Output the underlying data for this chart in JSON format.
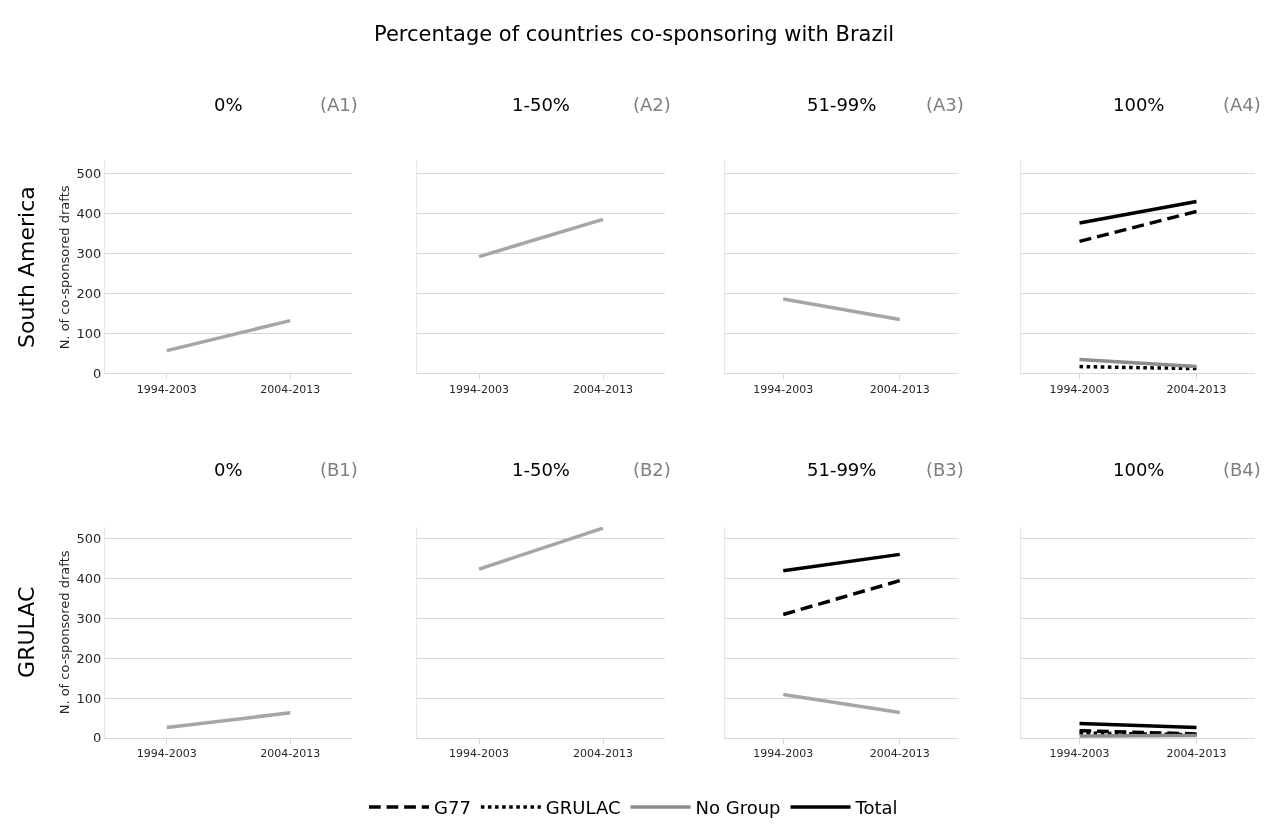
{
  "chart_data": [
    {
      "type": "line",
      "title": "0%",
      "ylabel": "N. of co-sponsored drafts",
      "annotations": [
        "(A1)",
        "South America",
        "Percentage of countries co-sponsoring with Brazil"
      ],
      "categories": [
        "1994-2003",
        "2004-2013"
      ],
      "ylim": [
        0,
        530
      ],
      "yticks": [
        0,
        100,
        200,
        300,
        400,
        500
      ],
      "grid": "y",
      "series": [
        {
          "color": "#a6a6a6",
          "values": [
            57,
            132
          ],
          "line_style": "solid"
        }
      ]
    },
    {
      "type": "line",
      "title": "1-50%",
      "annotations": [
        "(A2)"
      ],
      "categories": [
        "1994-2003",
        "2004-2013"
      ],
      "ylim": [
        0,
        530
      ],
      "yticks": [
        0,
        100,
        200,
        300,
        400,
        500
      ],
      "grid": "y",
      "tick_labels": "x",
      "series": [
        {
          "color": "#a6a6a6",
          "values": [
            292,
            385
          ],
          "line_style": "solid"
        }
      ]
    },
    {
      "type": "line",
      "title": "51-99%",
      "annotations": [
        "(A3)"
      ],
      "categories": [
        "1994-2003",
        "2004-2013"
      ],
      "ylim": [
        0,
        530
      ],
      "yticks": [
        0,
        100,
        200,
        300,
        400,
        500
      ],
      "grid": "y",
      "tick_labels": "x",
      "series": [
        {
          "color": "#a6a6a6",
          "values": [
            186,
            135
          ],
          "line_style": "solid"
        }
      ]
    },
    {
      "type": "line",
      "title": "100%",
      "annotations": [
        "(A4)"
      ],
      "categories": [
        "1994-2003",
        "2004-2013"
      ],
      "ylim": [
        0,
        530
      ],
      "yticks": [
        0,
        100,
        200,
        300,
        400,
        500
      ],
      "grid": "y",
      "tick_labels": "x",
      "series": [
        {
          "color": "#000000",
          "values": [
            330,
            405
          ],
          "line_style": "dashed"
        },
        {
          "color": "#000000",
          "values": [
            17,
            12
          ],
          "line_style": "dotted"
        },
        {
          "color": "#8c8c8c",
          "values": [
            35,
            17
          ],
          "line_style": "solid"
        },
        {
          "color": "#000000",
          "values": [
            376,
            430
          ],
          "line_style": "solid"
        }
      ]
    },
    {
      "type": "line",
      "title": "0%",
      "ylabel": "N. of co-sponsored drafts",
      "annotations": [
        "(B1)",
        "GRULAC"
      ],
      "categories": [
        "1994-2003",
        "2004-2013"
      ],
      "ylim": [
        0,
        530
      ],
      "yticks": [
        0,
        100,
        200,
        300,
        400,
        500
      ],
      "grid": "y",
      "series": [
        {
          "color": "#a6a6a6",
          "values": [
            26,
            63
          ],
          "line_style": "solid"
        }
      ]
    },
    {
      "type": "line",
      "title": "1-50%",
      "annotations": [
        "(B2)"
      ],
      "categories": [
        "1994-2003",
        "2004-2013"
      ],
      "ylim": [
        0,
        530
      ],
      "yticks": [
        0,
        100,
        200,
        300,
        400,
        500
      ],
      "grid": "y",
      "tick_labels": "x",
      "series": [
        {
          "color": "#a6a6a6",
          "values": [
            424,
            527
          ],
          "line_style": "solid"
        }
      ]
    },
    {
      "type": "line",
      "title": "51-99%",
      "annotations": [
        "(B3)"
      ],
      "categories": [
        "1994-2003",
        "2004-2013"
      ],
      "ylim": [
        0,
        530
      ],
      "yticks": [
        0,
        100,
        200,
        300,
        400,
        500
      ],
      "grid": "y",
      "tick_labels": "x",
      "series": [
        {
          "color": "#000000",
          "values": [
            310,
            395
          ],
          "line_style": "dashed"
        },
        {
          "color": "#a6a6a6",
          "values": [
            109,
            64
          ],
          "line_style": "solid"
        },
        {
          "color": "#000000",
          "values": [
            420,
            461
          ],
          "line_style": "solid"
        }
      ]
    },
    {
      "type": "line",
      "title": "100%",
      "annotations": [
        "(B4)"
      ],
      "categories": [
        "1994-2003",
        "2004-2013"
      ],
      "ylim": [
        0,
        530
      ],
      "yticks": [
        0,
        100,
        200,
        300,
        400,
        500
      ],
      "grid": "y",
      "tick_labels": "x",
      "legend": "bottom",
      "series": [
        {
          "name": "G77",
          "color": "#000000",
          "values": [
            18,
            10
          ],
          "line_style": "dashed"
        },
        {
          "name": "GRULAC",
          "color": "#000000",
          "values": [
            12,
            8
          ],
          "line_style": "dotted"
        },
        {
          "name": "No Group",
          "color": "#8c8c8c",
          "values": [
            5,
            6
          ],
          "line_style": "solid"
        },
        {
          "name": "Total",
          "color": "#000000",
          "values": [
            36,
            26
          ],
          "line_style": "solid"
        }
      ]
    }
  ]
}
